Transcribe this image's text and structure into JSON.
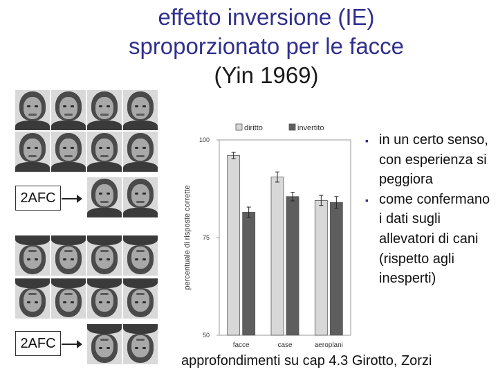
{
  "title": {
    "line1": "effetto inversione (IE)",
    "line2": "sproporzionato per le facce",
    "line3": "(Yin 1969)"
  },
  "figure": {
    "afc_label_1": "2AFC",
    "afc_label_2": "2AFC"
  },
  "bullets": [
    "in un certo senso, con esperienza si peggiora",
    "come confermano i dati sugli allevatori di cani (rispetto agli inesperti)"
  ],
  "footer": "approfondimenti su cap 4.3 Girotto, Zorzi",
  "chart_data": {
    "type": "bar",
    "categories": [
      "facce",
      "case",
      "aeroplani"
    ],
    "series": [
      {
        "name": "diritto",
        "values": [
          96,
          90.5,
          84.5
        ],
        "errors": [
          0.8,
          1.3,
          1.3
        ],
        "color": "#d8d8d8"
      },
      {
        "name": "invertito",
        "values": [
          81.5,
          85.5,
          84
        ],
        "errors": [
          1.3,
          1.1,
          1.5
        ],
        "color": "#5e5e5e"
      }
    ],
    "ylabel": "percentuale di risposte corrette",
    "ylim": [
      50,
      100
    ],
    "yticks": [
      50,
      75,
      100
    ],
    "legend": "top"
  }
}
